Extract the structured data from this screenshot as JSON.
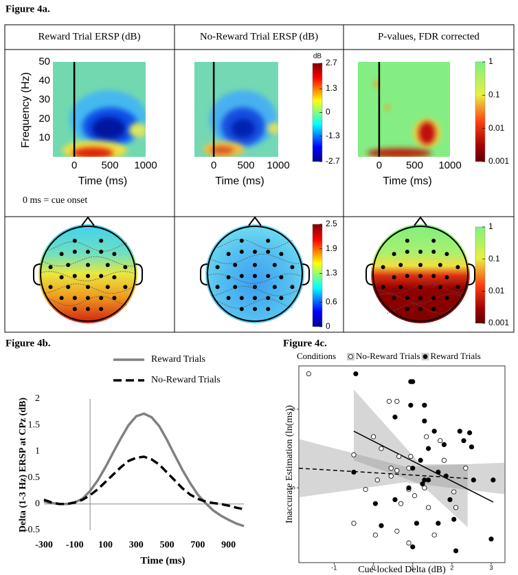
{
  "figure_4a": {
    "title": "Figure 4a.",
    "column_headers": [
      "Reward Trial ERSP (dB)",
      "No-Reward Trial ERSP (dB)",
      "P-values, FDR corrected"
    ],
    "note": "0 ms = cue onset",
    "spectrogram": {
      "xlabel": "Time (ms)",
      "ylabel": "Frequency (Hz)",
      "xlim": [
        -300,
        1000
      ],
      "ylim": [
        0,
        50
      ],
      "xticks": [
        0,
        500,
        1000
      ],
      "yticks": [
        10,
        20,
        30,
        40,
        50
      ]
    },
    "ersp_colorbar": {
      "label": "dB",
      "lim": [
        -2.7,
        2.7
      ],
      "ticks": [
        2.7,
        1.3,
        0,
        -1.3,
        -2.7
      ]
    },
    "p_colorbar": {
      "lim": [
        0.001,
        1
      ],
      "ticks": [
        1,
        0.1,
        0.01,
        0.001
      ],
      "log": true
    },
    "topo_colorbar": {
      "lim": [
        0,
        2.5
      ],
      "ticks": [
        2.5,
        1.9,
        1.3,
        0.6,
        0
      ]
    }
  },
  "chart_data": [
    {
      "type": "line",
      "title": "Figure 4b.",
      "xlabel": "Time (ms)",
      "ylabel": "Delta (1-3 Hz) ERSP at CPz (dB)",
      "x": [
        -300,
        -250,
        -200,
        -150,
        -100,
        -50,
        0,
        50,
        100,
        150,
        200,
        250,
        300,
        350,
        400,
        450,
        500,
        550,
        600,
        650,
        700,
        750,
        800,
        850,
        900,
        950,
        1000
      ],
      "series": [
        {
          "name": "Reward Trials",
          "color": "#808080",
          "dashed": false,
          "values": [
            0.05,
            0.02,
            0,
            0,
            0.03,
            0.1,
            0.25,
            0.45,
            0.7,
            0.98,
            1.25,
            1.5,
            1.67,
            1.72,
            1.65,
            1.48,
            1.22,
            0.93,
            0.65,
            0.4,
            0.18,
            0.02,
            -0.12,
            -0.22,
            -0.3,
            -0.37,
            -0.42
          ]
        },
        {
          "name": "No-Reward Trials",
          "color": "#000000",
          "dashed": true,
          "values": [
            0.08,
            0.03,
            0,
            0,
            0.03,
            0.08,
            0.17,
            0.28,
            0.42,
            0.56,
            0.7,
            0.82,
            0.88,
            0.9,
            0.85,
            0.75,
            0.6,
            0.45,
            0.3,
            0.18,
            0.1,
            0.05,
            0.02,
            0,
            -0.03,
            -0.07,
            -0.1
          ]
        }
      ],
      "xlim": [
        -300,
        1000
      ],
      "ylim": [
        -0.5,
        2
      ],
      "xticks": [
        -300,
        -100,
        100,
        300,
        500,
        700,
        900
      ],
      "yticks": [
        -0.5,
        0,
        0.5,
        1,
        1.5,
        2
      ]
    },
    {
      "type": "scatter",
      "title": "Figure 4c.",
      "legend_title": "Conditions",
      "xlabel": "Cue-locked Delta (dB)",
      "ylabel": "Inaccurate Estimation (ln(ms))",
      "xlim": [
        -1.9,
        3.35
      ],
      "ylim": [
        4.05,
        6.55
      ],
      "xticks": [
        -1,
        0,
        1,
        2,
        3
      ],
      "yticks": [
        5,
        6
      ],
      "series": [
        {
          "name": "No-Reward Trials",
          "marker": "open",
          "x": [
            -1.65,
            0.4,
            0.6,
            0,
            1.35,
            1.7,
            0.2,
            -0.5,
            0.65,
            0.95,
            1.8,
            0.45,
            0.6,
            0.9,
            2.35,
            0.1,
            1.3,
            0.9,
            1.05,
            -0.2,
            2.05,
            0.45,
            0.7,
            1.4,
            2.1,
            -0.5,
            0.05,
            0.6,
            1.55,
            0.9
          ],
          "values": [
            6.45,
            6.1,
            6.1,
            5.65,
            5.65,
            5.6,
            5.5,
            5.42,
            5.4,
            5.4,
            5.35,
            5.25,
            5.22,
            5.25,
            5.25,
            5.1,
            5,
            4.98,
            4.9,
            4.98,
            4.95,
            5.15,
            4.8,
            4.75,
            4.75,
            4.55,
            4.4,
            4.45,
            4.4,
            4.3
          ],
          "fit": {
            "x": [
              -1.9,
              2.4
            ],
            "values": [
              5.25,
              5.12
            ],
            "dashed": true
          },
          "band": {
            "x": [
              -1.9,
              0.8,
              3.35
            ],
            "lower": [
              4.88,
              5.07,
              4.92
            ],
            "upper": [
              5.62,
              5.27,
              5.32
            ]
          }
        },
        {
          "name": "Reward Trials",
          "marker": "filled",
          "x": [
            -0.45,
            0.95,
            1,
            0.95,
            1.3,
            0.55,
            1.3,
            1.55,
            2.2,
            2.45,
            1.8,
            2.5,
            2.3,
            1.4,
            1.2,
            -0.5,
            1,
            1.65,
            1.85,
            1.4,
            1.3,
            2.55,
            3.05,
            1.25,
            0.9,
            0.05,
            0.55,
            1.95,
            1.1,
            0.2,
            1.65,
            2.05,
            2.1,
            3,
            1
          ],
          "values": [
            6.45,
            6.35,
            6.35,
            6.05,
            6.05,
            5.9,
            5.85,
            5.72,
            5.72,
            5.7,
            5.55,
            5.52,
            5.6,
            5.5,
            5.35,
            5.2,
            5.25,
            5.2,
            5.15,
            5.1,
            5.1,
            5.1,
            5.1,
            5.05,
            5,
            4.8,
            4.85,
            4.85,
            4.55,
            4.52,
            4.55,
            4.6,
            4.2,
            4.35,
            4.25
          ],
          "fit": {
            "x": [
              -0.5,
              3.05
            ],
            "values": [
              5.72,
              4.82
            ],
            "dashed": false
          },
          "band": {
            "x": [
              -0.5,
              1.2,
              2.4
            ],
            "lower": [
              5.35,
              5.05,
              4.5
            ],
            "upper": [
              6.25,
              5.3,
              5.3
            ]
          }
        }
      ]
    }
  ]
}
